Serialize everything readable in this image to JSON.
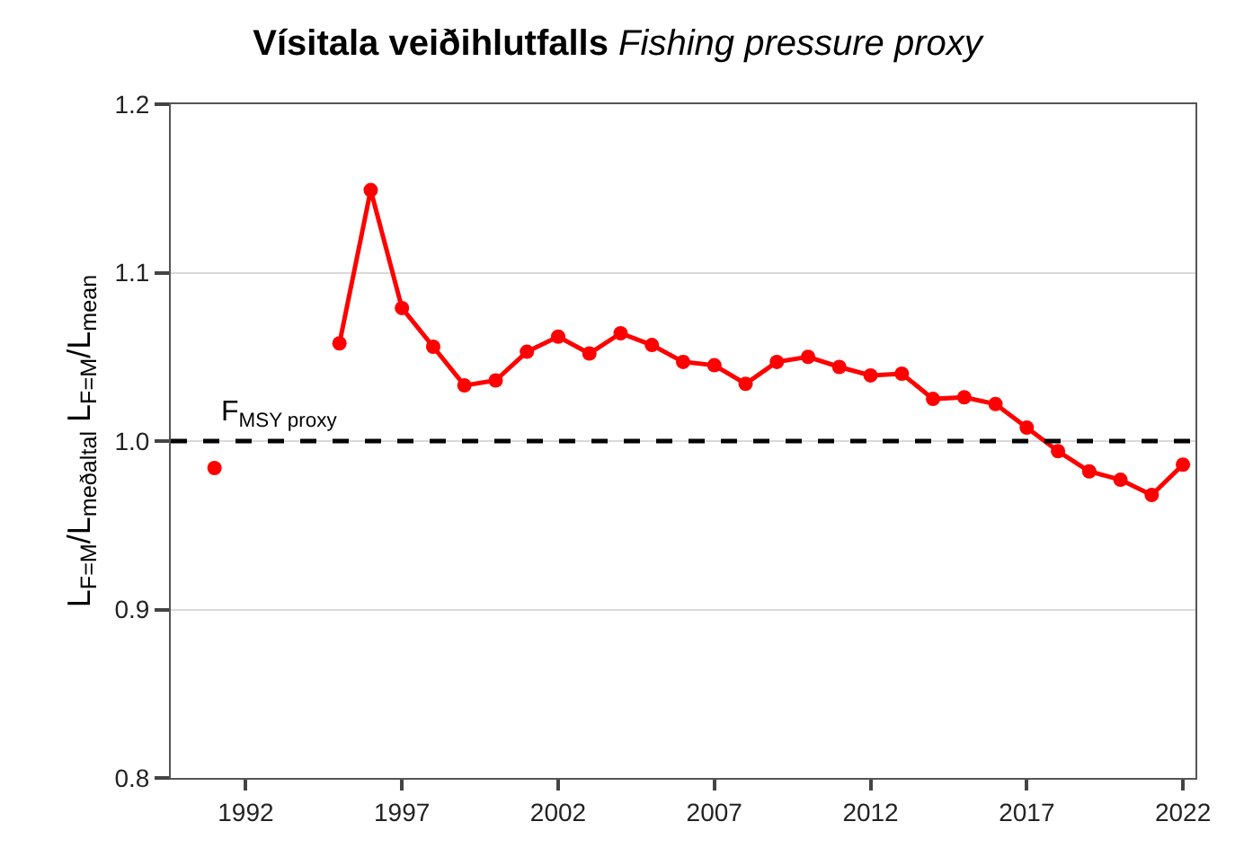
{
  "chart_data": {
    "type": "line",
    "title": "Vísitala veiðihlutfalls",
    "subtitle": "Fishing pressure proxy",
    "ylabel": "L$_{F=M}$/L$_{meðaltal}$ L$_{F=M}$/L$_{mean}$",
    "x": [
      1991,
      1992,
      1993,
      1994,
      1995,
      1996,
      1997,
      1998,
      1999,
      2000,
      2001,
      2002,
      2003,
      2004,
      2005,
      2006,
      2007,
      2008,
      2009,
      2010,
      2011,
      2012,
      2013,
      2014,
      2015,
      2016,
      2017,
      2018,
      2019,
      2020,
      2021,
      2022
    ],
    "series": [
      {
        "color": "#ff0000",
        "values": [
          0.984,
          null,
          null,
          null,
          1.058,
          1.149,
          1.079,
          1.056,
          1.033,
          1.036,
          1.053,
          1.062,
          1.052,
          1.064,
          1.057,
          1.047,
          1.045,
          1.034,
          1.047,
          1.05,
          1.044,
          1.039,
          1.04,
          1.025,
          1.026,
          1.022,
          1.008,
          0.994,
          0.982,
          0.977,
          0.968,
          0.986
        ]
      }
    ],
    "xlim": [
      1989.6,
      2022.4
    ],
    "xticks": [
      1992,
      1997,
      2002,
      2007,
      2012,
      2017,
      2022
    ],
    "ylim": [
      0.8,
      1.2
    ],
    "yticks": [
      {
        "value": 0.8,
        "label": "0.8"
      },
      {
        "value": 0.9,
        "label": "0.9"
      },
      {
        "value": 1.0,
        "label": "1.0"
      },
      {
        "value": 1.1,
        "label": "1.1"
      },
      {
        "value": 1.2,
        "label": "1.2"
      }
    ],
    "ref_lines": [
      {
        "axis": "y",
        "value": 1.0,
        "label": "F$_{MSY proxy}$",
        "color": "#000000",
        "line_style": "dashed"
      }
    ],
    "grid": "y",
    "marker": "circle",
    "line_style": "solid"
  }
}
